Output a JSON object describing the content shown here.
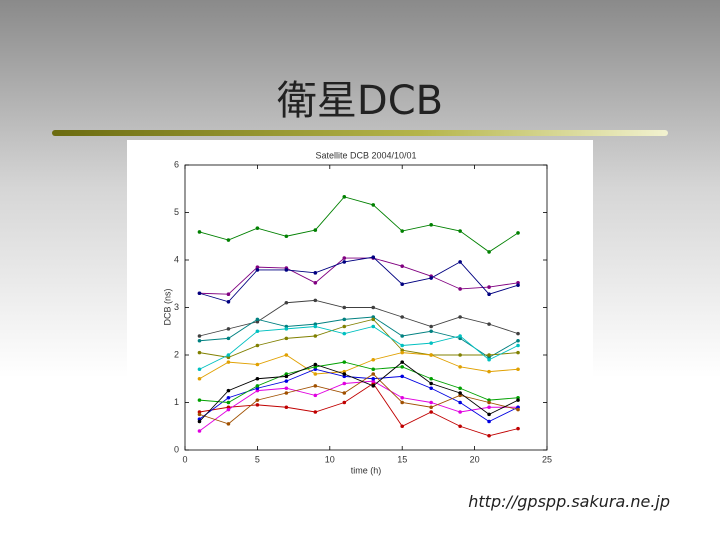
{
  "slide_title": "衛星DCB",
  "source_url": "http://gpspp.sakura.ne.jp",
  "chart_data": {
    "type": "line",
    "title": "Satellite DCB  2004/10/01",
    "xlabel": "time (h)",
    "ylabel": "DCB (ns)",
    "xlim": [
      0,
      25
    ],
    "ylim": [
      0,
      6
    ],
    "xticks": [
      0,
      5,
      10,
      15,
      20,
      25
    ],
    "yticks": [
      0,
      1,
      2,
      3,
      4,
      5,
      6
    ],
    "x": [
      1,
      3,
      5,
      7,
      9,
      11,
      13,
      15,
      17,
      19,
      21,
      23
    ],
    "series": [
      {
        "color": "#008000",
        "values": [
          4.59,
          4.42,
          4.67,
          4.5,
          4.63,
          5.33,
          5.16,
          4.61,
          4.74,
          4.61,
          4.17,
          4.57
        ]
      },
      {
        "color": "#800080",
        "values": [
          3.3,
          3.28,
          3.85,
          3.83,
          3.52,
          4.04,
          4.04,
          3.87,
          3.66,
          3.39,
          3.43,
          3.52
        ]
      },
      {
        "color": "#000080",
        "values": [
          3.3,
          3.12,
          3.79,
          3.79,
          3.73,
          3.96,
          4.06,
          3.49,
          3.62,
          3.96,
          3.28,
          3.47
        ]
      },
      {
        "color": "#404040",
        "values": [
          2.4,
          2.55,
          2.7,
          3.1,
          3.15,
          3.0,
          3.0,
          2.8,
          2.6,
          2.8,
          2.65,
          2.45
        ]
      },
      {
        "color": "#008080",
        "values": [
          2.3,
          2.35,
          2.75,
          2.6,
          2.65,
          2.75,
          2.8,
          2.4,
          2.5,
          2.35,
          1.95,
          2.3
        ]
      },
      {
        "color": "#808000",
        "values": [
          2.05,
          1.95,
          2.2,
          2.35,
          2.4,
          2.6,
          2.75,
          2.1,
          2.0,
          2.0,
          2.0,
          2.05
        ]
      },
      {
        "color": "#00c0c0",
        "values": [
          1.7,
          2.0,
          2.5,
          2.55,
          2.6,
          2.45,
          2.6,
          2.2,
          2.25,
          2.4,
          1.9,
          2.2
        ]
      },
      {
        "color": "#e0a000",
        "values": [
          1.5,
          1.85,
          1.8,
          2.0,
          1.6,
          1.65,
          1.9,
          2.05,
          2.0,
          1.75,
          1.65,
          1.7
        ]
      },
      {
        "color": "#c00000",
        "values": [
          0.8,
          0.9,
          0.95,
          0.9,
          0.8,
          1.0,
          1.4,
          0.5,
          0.8,
          0.5,
          0.3,
          0.45
        ]
      },
      {
        "color": "#e000e0",
        "values": [
          0.4,
          0.85,
          1.25,
          1.3,
          1.15,
          1.4,
          1.45,
          1.1,
          1.0,
          0.8,
          0.9,
          0.9
        ]
      },
      {
        "color": "#0000e0",
        "values": [
          0.65,
          1.1,
          1.3,
          1.45,
          1.7,
          1.55,
          1.5,
          1.55,
          1.3,
          1.0,
          0.6,
          0.9
        ]
      },
      {
        "color": "#00a000",
        "values": [
          1.05,
          1.0,
          1.35,
          1.6,
          1.75,
          1.85,
          1.7,
          1.75,
          1.5,
          1.3,
          1.05,
          1.1
        ]
      },
      {
        "color": "#a05000",
        "values": [
          0.75,
          0.55,
          1.05,
          1.2,
          1.35,
          1.2,
          1.6,
          1.0,
          0.9,
          1.15,
          1.0,
          0.85
        ]
      },
      {
        "color": "#000000",
        "values": [
          0.6,
          1.25,
          1.5,
          1.55,
          1.8,
          1.6,
          1.35,
          1.85,
          1.4,
          1.2,
          0.75,
          1.05
        ]
      }
    ]
  }
}
